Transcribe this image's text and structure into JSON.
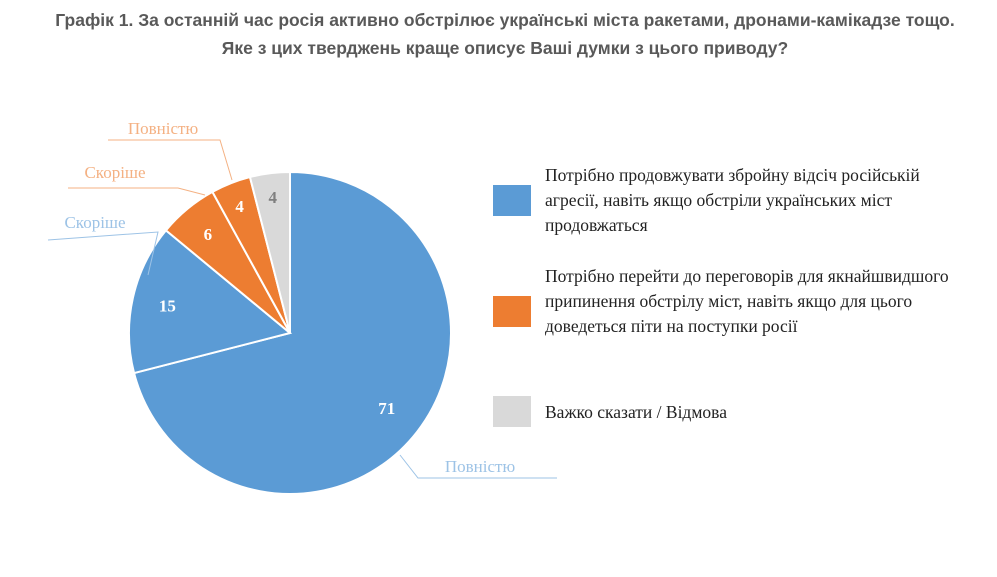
{
  "title": "Графік 1. За останній час росія активно обстрілює українські міста ракетами, дронами-камікадзе тощо. Яке з цих тверджень краще описує Ваші думки з цього приводу?",
  "colors": {
    "blue": "#5B9BD5",
    "orange": "#ED7D31",
    "gray": "#D9D9D9",
    "blue_label": "#9DC3E6",
    "orange_label": "#F4B183"
  },
  "chart_data": {
    "type": "pie",
    "slices": [
      {
        "value": 71,
        "label": "71",
        "sublabel": "Повністю",
        "color": "#5B9BD5",
        "series": "Потрібно продовжувати збройну відсіч російській агресії, навіть якщо обстріли українських міст продовжаться"
      },
      {
        "value": 15,
        "label": "15",
        "sublabel": "Скоріше",
        "color": "#5B9BD5",
        "series": "Потрібно продовжувати збройну відсіч російській агресії, навіть якщо обстріли українських міст продовжаться"
      },
      {
        "value": 6,
        "label": "6",
        "sublabel": "Скоріше",
        "color": "#ED7D31",
        "series": "Потрібно перейти до переговорів для якнайшвидшого припинення обстрілу міст, навіть якщо для цього доведеться піти на поступки росії"
      },
      {
        "value": 4,
        "label": "4",
        "sublabel": "Повністю",
        "color": "#ED7D31",
        "series": "Потрібно перейти до переговорів для якнайшвидшого припинення обстрілу міст, навіть якщо для цього доведеться піти на поступки росії"
      },
      {
        "value": 4,
        "label": "4",
        "sublabel": "",
        "color": "#D9D9D9",
        "series": "Важко сказати / Відмова"
      }
    ],
    "legend": [
      {
        "label": "Потрібно продовжувати збройну відсіч російській агресії, навіть якщо обстріли українських міст продовжаться",
        "color": "#5B9BD5"
      },
      {
        "label": "Потрібно перейти до переговорів для якнайшвидшого припинення обстрілу міст, навіть якщо для цього доведеться піти на поступки росії",
        "color": "#ED7D31"
      },
      {
        "label": "Важко сказати / Відмова",
        "color": "#D9D9D9"
      }
    ],
    "legend_position": "right"
  }
}
